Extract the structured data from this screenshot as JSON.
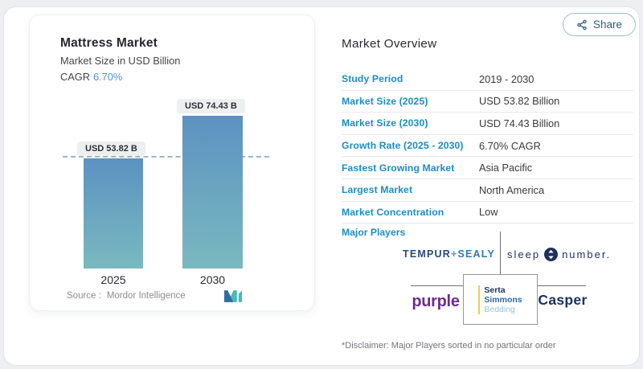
{
  "page": {
    "share_label": "Share"
  },
  "chart_card": {
    "title": "Mattress Market",
    "subtitle": "Market Size in USD Billion",
    "cagr_label": "CAGR",
    "cagr_value": "6.70%",
    "bar_labels": [
      "USD 53.82 B",
      "USD 74.43 B"
    ],
    "source_label": "Source :",
    "source_value": "Mordor Intelligence"
  },
  "chart_data": {
    "type": "bar",
    "title": "Mattress Market",
    "subtitle": "Market Size in USD Billion",
    "cagr": "6.70%",
    "categories": [
      "2025",
      "2030"
    ],
    "values": [
      53.82,
      74.43
    ],
    "unit": "USD Billion",
    "bar_value_labels": [
      "USD 53.82 B",
      "USD 74.43 B"
    ],
    "reference_line": {
      "at_value": 53.82,
      "style": "dashed"
    },
    "bar_gradient": [
      "#5b92c1",
      "#7ab9bf"
    ],
    "source": "Mordor Intelligence",
    "grid": false,
    "legend": false
  },
  "overview": {
    "title": "Market Overview",
    "rows": [
      {
        "label": "Study Period",
        "value": "2019 - 2030"
      },
      {
        "label": "Market Size (2025)",
        "value": "USD 53.82 Billion"
      },
      {
        "label": "Market Size (2030)",
        "value": "USD 74.43 Billion"
      },
      {
        "label": "Growth Rate (2025 - 2030)",
        "value": "6.70% CAGR"
      },
      {
        "label": "Fastest Growing Market",
        "value": "Asia Pacific"
      },
      {
        "label": "Largest Market",
        "value": "North America"
      },
      {
        "label": "Market Concentration",
        "value": "Low"
      }
    ],
    "major_players_label": "Major Players",
    "players": {
      "tempur_part1": "TEMPUR",
      "tempur_plus": "+",
      "tempur_part2": "SEALY",
      "sleep_part1": "sleep",
      "sleep_part2": "number.",
      "purple": "purple",
      "serta_line1": "Serta",
      "serta_line2": "Simmons",
      "serta_line3": "Bedding",
      "casper": "Casper"
    },
    "disclaimer": "*Disclaimer: Major Players sorted in no particular order"
  },
  "colors": {
    "label_blue": "#1b8dc5",
    "cagr_blue": "#4e92cc",
    "bar_top": "#5b92c1",
    "bar_bottom": "#7ab9bf",
    "navy": "#1d3160",
    "purple": "#6d2d8f",
    "mordor_navy": "#2f6da5",
    "mordor_teal": "#45bcb6",
    "share_teal": "#2e5f78"
  }
}
